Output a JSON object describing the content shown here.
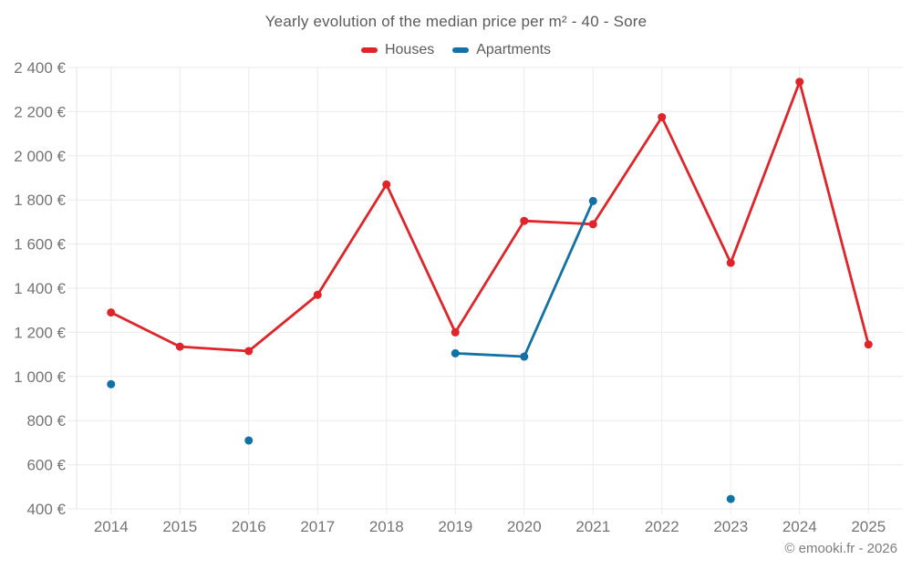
{
  "title": "Yearly evolution of the median price per m² - 40 - Sore",
  "footer": "© emooki.fr - 2026",
  "legend": {
    "items": [
      {
        "label": "Houses",
        "color": "#e02429"
      },
      {
        "label": "Apartments",
        "color": "#1272a5"
      }
    ]
  },
  "colors": {
    "houses": "#e02429",
    "apartments": "#1272a5",
    "grid": "#ebebeb",
    "axis_border": "#e3e3e3",
    "tick_label": "#757575"
  },
  "chart_data": {
    "type": "line",
    "title": "Yearly evolution of the median price per m² - 40 - Sore",
    "categories": [
      "2014",
      "2015",
      "2016",
      "2017",
      "2018",
      "2019",
      "2020",
      "2021",
      "2022",
      "2023",
      "2024",
      "2025"
    ],
    "series": [
      {
        "name": "Houses",
        "color": "#e02429",
        "values": [
          1290,
          1135,
          1115,
          1370,
          1870,
          1200,
          1705,
          1690,
          2175,
          1515,
          2335,
          1145
        ]
      },
      {
        "name": "Apartments",
        "color": "#1272a5",
        "values": [
          965,
          null,
          710,
          null,
          null,
          1105,
          1090,
          1795,
          null,
          445,
          null,
          null
        ]
      }
    ],
    "xlabel": "",
    "ylabel": "",
    "ylim": [
      400,
      2400
    ],
    "ytick_step": 200,
    "ytick_suffix": " €",
    "grid": true,
    "legend_position": "top",
    "note": "Line segments connect only consecutive years; isolated points are drawn as dots"
  }
}
